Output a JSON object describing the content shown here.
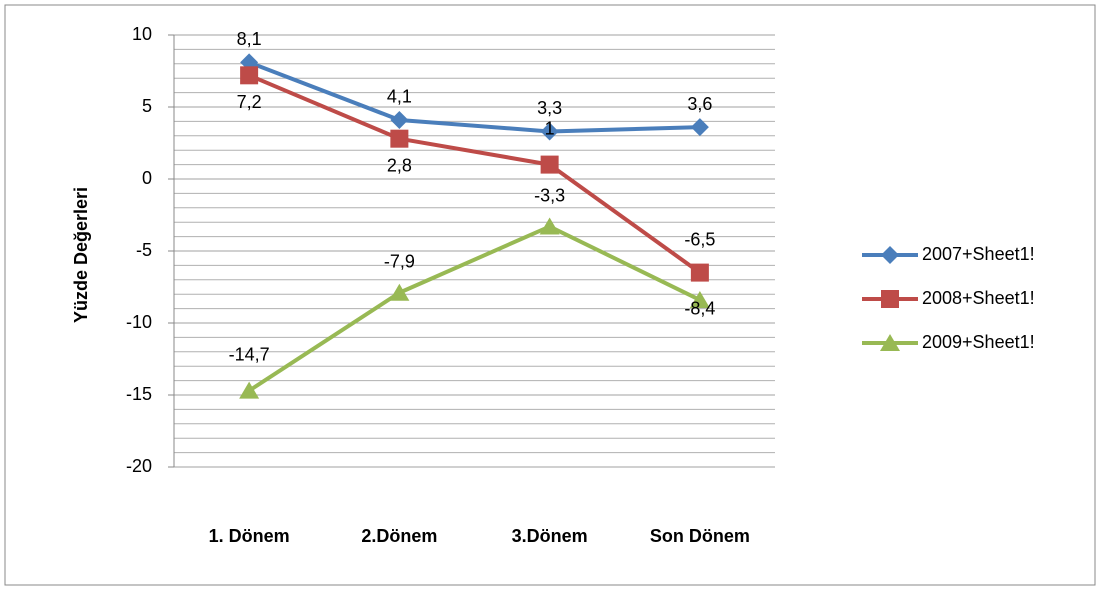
{
  "chart_data": {
    "type": "line",
    "y_label": "Yüzde Değerleri",
    "categories": [
      "1. Dönem",
      "2.Dönem",
      "3.Dönem",
      "Son Dönem"
    ],
    "series": [
      {
        "name": "2007+Sheet1!",
        "color": "#4a7ebb",
        "marker": "diamond",
        "values": [
          8.1,
          4.1,
          3.3,
          3.6
        ],
        "value_labels": [
          "8,1",
          "4,1",
          "3,3",
          "3,6"
        ]
      },
      {
        "name": "2008+Sheet1!",
        "color": "#be4b48",
        "marker": "square",
        "values": [
          7.2,
          2.8,
          1,
          -6.5
        ],
        "value_labels": [
          "7,2",
          "2,8",
          "1",
          "-6,5"
        ]
      },
      {
        "name": "2009+Sheet1!",
        "color": "#98b954",
        "marker": "triangle",
        "values": [
          -14.7,
          -7.9,
          -3.3,
          -8.4
        ],
        "value_labels": [
          "-14,7",
          "-7,9",
          "-3,3",
          "-8,4"
        ]
      }
    ],
    "ylim": [
      -20,
      10
    ],
    "yticks": [
      -20,
      -15,
      -10,
      -5,
      0,
      5,
      10
    ],
    "grid": true,
    "legend": "right"
  }
}
